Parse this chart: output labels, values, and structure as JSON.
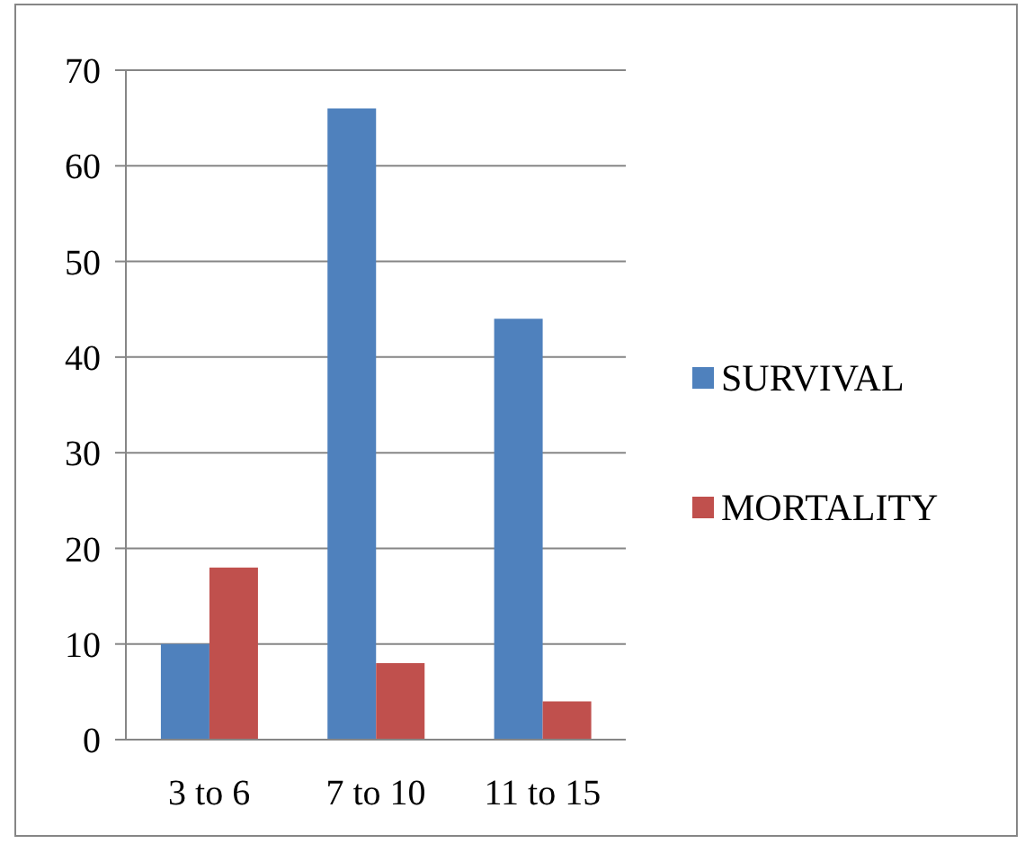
{
  "chart_data": {
    "type": "bar",
    "categories": [
      "3 to 6",
      "7 to 10",
      "11 to 15"
    ],
    "series": [
      {
        "name": "SURVIVAL",
        "color": "#4f81bd",
        "values": [
          10,
          66,
          44
        ]
      },
      {
        "name": "MORTALITY",
        "color": "#c0504d",
        "values": [
          18,
          8,
          4
        ]
      }
    ],
    "ylim": [
      0,
      70
    ],
    "yticks": [
      0,
      10,
      20,
      30,
      40,
      50,
      60,
      70
    ],
    "grid": "y",
    "legend": "right"
  }
}
